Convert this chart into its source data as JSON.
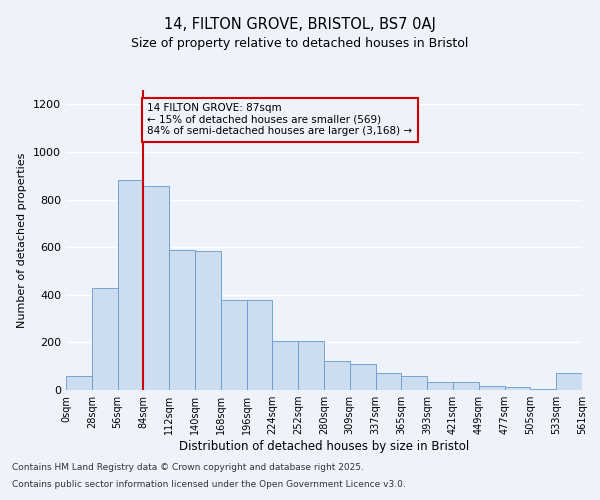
{
  "title_line1": "14, FILTON GROVE, BRISTOL, BS7 0AJ",
  "title_line2": "Size of property relative to detached houses in Bristol",
  "xlabel": "Distribution of detached houses by size in Bristol",
  "ylabel": "Number of detached properties",
  "bin_labels": [
    "0sqm",
    "28sqm",
    "56sqm",
    "84sqm",
    "112sqm",
    "140sqm",
    "168sqm",
    "196sqm",
    "224sqm",
    "252sqm",
    "280sqm",
    "309sqm",
    "337sqm",
    "365sqm",
    "393sqm",
    "421sqm",
    "449sqm",
    "477sqm",
    "505sqm",
    "533sqm",
    "561sqm"
  ],
  "bar_values": [
    60,
    430,
    880,
    855,
    590,
    585,
    380,
    380,
    205,
    205,
    120,
    110,
    70,
    60,
    35,
    35,
    15,
    12,
    5,
    70,
    0
  ],
  "bar_color": "#ccddf0",
  "bar_edge_color": "#6699cc",
  "vertical_line_x": 3,
  "vertical_line_color": "#cc0000",
  "annotation_text": "14 FILTON GROVE: 87sqm\n← 15% of detached houses are smaller (569)\n84% of semi-detached houses are larger (3,168) →",
  "annotation_box_color": "#cc0000",
  "ylim": [
    0,
    1260
  ],
  "yticks": [
    0,
    200,
    400,
    600,
    800,
    1000,
    1200
  ],
  "footer_line1": "Contains HM Land Registry data © Crown copyright and database right 2025.",
  "footer_line2": "Contains public sector information licensed under the Open Government Licence v3.0.",
  "background_color": "#eef2fa",
  "grid_color": "#ffffff"
}
